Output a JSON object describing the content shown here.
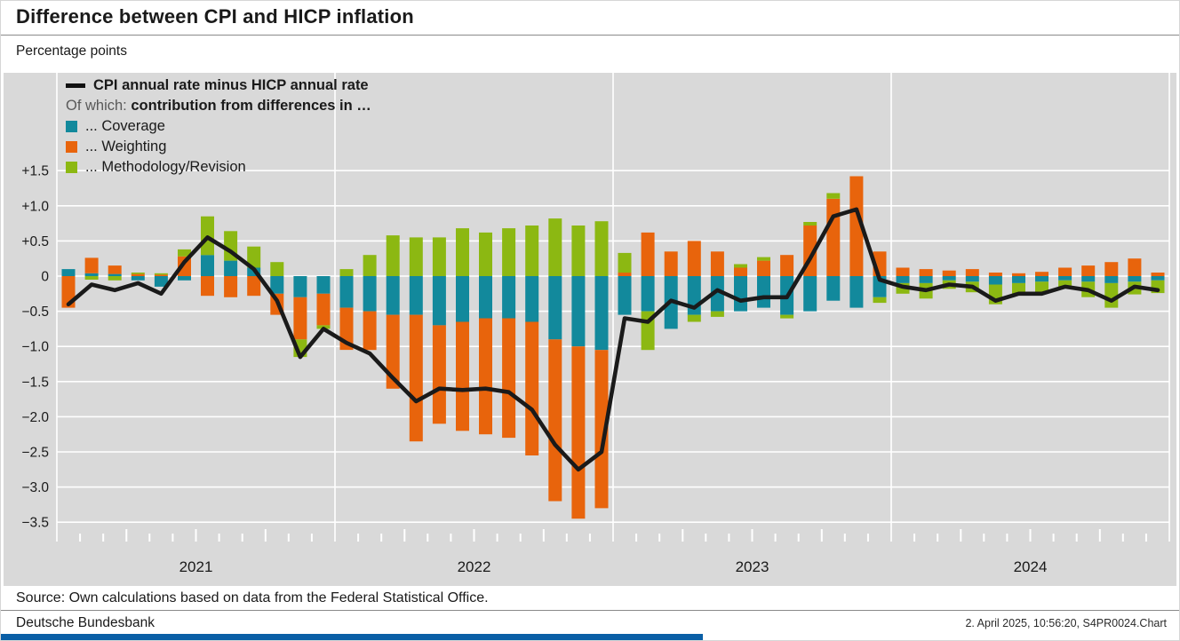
{
  "header": {
    "title": "Difference between CPI and HICP inflation",
    "subtitle": "Percentage points"
  },
  "legend": {
    "line_label": "CPI annual rate minus HICP annual rate",
    "of_which_prefix": "Of which:",
    "of_which_rest": "contribution from differences in …",
    "items": [
      {
        "label": "... Coverage",
        "color": "#12899c"
      },
      {
        "label": "... Weighting",
        "color": "#e8640c"
      },
      {
        "label": "... Methodology/Revision",
        "color": "#8cb812"
      }
    ]
  },
  "axis": {
    "y_ticks": [
      "+1.5",
      "+1.0",
      "+0.5",
      "0",
      "−0.5",
      "−1.0",
      "−1.5",
      "−2.0",
      "−2.5",
      "−3.0",
      "−3.5"
    ],
    "y_values": [
      1.5,
      1.0,
      0.5,
      0,
      -0.5,
      -1.0,
      -1.5,
      -2.0,
      -2.5,
      -3.0,
      -3.5
    ],
    "x_year_labels": [
      "2021",
      "2022",
      "2023",
      "2024"
    ]
  },
  "chart_data": {
    "type": "bar",
    "subtype": "stacked-bars-with-line-overlay",
    "title": "Difference between CPI and HICP inflation",
    "ylabel": "Percentage points",
    "xlabel": "",
    "ylim": [
      -3.5,
      1.75
    ],
    "grid": true,
    "legend_position": "top-left",
    "x": [
      "2021-01",
      "2021-02",
      "2021-03",
      "2021-04",
      "2021-05",
      "2021-06",
      "2021-07",
      "2021-08",
      "2021-09",
      "2021-10",
      "2021-11",
      "2021-12",
      "2022-01",
      "2022-02",
      "2022-03",
      "2022-04",
      "2022-05",
      "2022-06",
      "2022-07",
      "2022-08",
      "2022-09",
      "2022-10",
      "2022-11",
      "2022-12",
      "2023-01",
      "2023-02",
      "2023-03",
      "2023-04",
      "2023-05",
      "2023-06",
      "2023-07",
      "2023-08",
      "2023-09",
      "2023-10",
      "2023-11",
      "2023-12",
      "2024-01",
      "2024-02",
      "2024-03",
      "2024-04",
      "2024-05",
      "2024-06",
      "2024-07",
      "2024-08",
      "2024-09",
      "2024-10",
      "2024-11",
      "2024-12"
    ],
    "series": [
      {
        "name": "Coverage",
        "kind": "bar",
        "color": "#12899c",
        "values": [
          0.1,
          0.04,
          0.03,
          -0.06,
          -0.15,
          -0.06,
          0.3,
          0.22,
          0.12,
          -0.25,
          -0.3,
          -0.25,
          -0.45,
          -0.5,
          -0.55,
          -0.55,
          -0.7,
          -0.65,
          -0.6,
          -0.6,
          -0.65,
          -0.9,
          -1.0,
          -1.05,
          -0.55,
          -0.5,
          -0.75,
          -0.55,
          -0.5,
          -0.5,
          -0.45,
          -0.55,
          -0.5,
          -0.35,
          -0.45,
          -0.3,
          -0.1,
          -0.1,
          -0.06,
          -0.08,
          -0.12,
          -0.1,
          -0.08,
          -0.06,
          -0.08,
          -0.1,
          -0.08,
          -0.06
        ]
      },
      {
        "name": "Weighting",
        "kind": "bar",
        "color": "#e8640c",
        "values": [
          -0.45,
          0.22,
          0.12,
          0.03,
          0.02,
          0.28,
          -0.28,
          -0.3,
          -0.28,
          -0.3,
          -0.6,
          -0.45,
          -0.6,
          -0.55,
          -1.05,
          -1.8,
          -1.4,
          -1.55,
          -1.65,
          -1.7,
          -1.9,
          -2.3,
          -2.45,
          -2.25,
          0.05,
          0.62,
          0.35,
          0.5,
          0.35,
          0.12,
          0.22,
          0.3,
          0.72,
          1.1,
          1.42,
          0.35,
          0.12,
          0.1,
          0.08,
          0.1,
          0.05,
          0.04,
          0.06,
          0.12,
          0.15,
          0.2,
          0.25,
          0.05
        ]
      },
      {
        "name": "Methodology/Revision",
        "kind": "bar",
        "color": "#8cb812",
        "values": [
          0.0,
          -0.05,
          -0.06,
          0.02,
          0.02,
          0.1,
          0.55,
          0.42,
          0.3,
          0.2,
          -0.25,
          -0.05,
          0.1,
          0.3,
          0.58,
          0.55,
          0.55,
          0.68,
          0.62,
          0.68,
          0.72,
          0.82,
          0.72,
          0.78,
          0.28,
          -0.55,
          0.0,
          -0.1,
          -0.08,
          0.05,
          0.05,
          -0.05,
          0.05,
          0.08,
          0.0,
          -0.08,
          -0.15,
          -0.22,
          -0.12,
          -0.15,
          -0.28,
          -0.15,
          -0.15,
          -0.1,
          -0.22,
          -0.35,
          -0.18,
          -0.18
        ]
      },
      {
        "name": "CPI annual rate minus HICP annual rate",
        "kind": "line",
        "type": "line",
        "color": "#1a1a1a",
        "values": [
          -0.4,
          -0.12,
          -0.2,
          -0.1,
          -0.25,
          0.2,
          0.55,
          0.35,
          0.1,
          -0.35,
          -1.15,
          -0.75,
          -0.95,
          -1.1,
          -1.45,
          -1.78,
          -1.6,
          -1.62,
          -1.6,
          -1.65,
          -1.9,
          -2.4,
          -2.75,
          -2.5,
          -0.6,
          -0.65,
          -0.35,
          -0.45,
          -0.2,
          -0.35,
          -0.3,
          -0.3,
          0.25,
          0.85,
          0.95,
          -0.05,
          -0.15,
          -0.2,
          -0.12,
          -0.15,
          -0.35,
          -0.25,
          -0.25,
          -0.15,
          -0.2,
          -0.35,
          -0.15,
          -0.2
        ]
      }
    ]
  },
  "colors": {
    "panel_background": "#d9d9d9",
    "gridline": "#ffffff",
    "brand_bar": "#0a5fa6"
  },
  "footer": {
    "source": "Source: Own calculations based on data from the Federal Statistical Office.",
    "publisher": "Deutsche Bundesbank",
    "timestamp": "2. April 2025, 10:56:20, S4PR0024.Chart"
  }
}
